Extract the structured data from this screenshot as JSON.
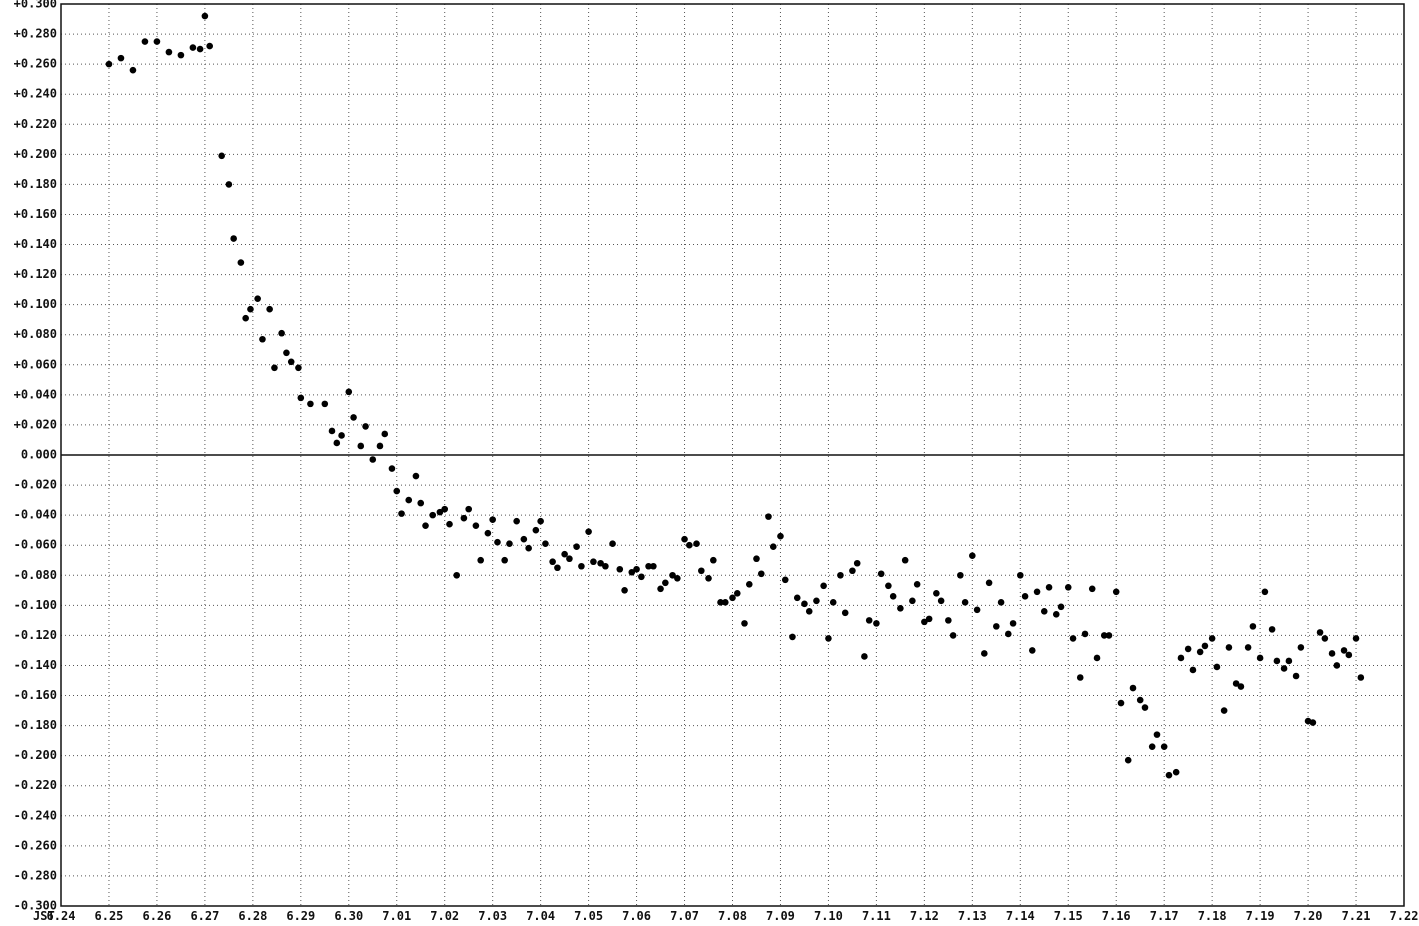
{
  "chart_data": {
    "type": "scatter",
    "x_prefix": "JST",
    "x_tick_labels": [
      "6.24",
      "6.25",
      "6.26",
      "6.27",
      "6.28",
      "6.29",
      "6.30",
      "7.01",
      "7.02",
      "7.03",
      "7.04",
      "7.05",
      "7.06",
      "7.07",
      "7.08",
      "7.09",
      "7.10",
      "7.11",
      "7.12",
      "7.13",
      "7.14",
      "7.15",
      "7.16",
      "7.17",
      "7.18",
      "7.19",
      "7.20",
      "7.21",
      "7.22"
    ],
    "y_tick_labels": [
      "+0.300",
      "+0.280",
      "+0.260",
      "+0.240",
      "+0.220",
      "+0.200",
      "+0.180",
      "+0.160",
      "+0.140",
      "+0.120",
      "+0.100",
      "+0.080",
      "+0.060",
      "+0.040",
      "+0.020",
      "0.000",
      "-0.020",
      "-0.040",
      "-0.060",
      "-0.080",
      "-0.100",
      "-0.120",
      "-0.140",
      "-0.160",
      "-0.180",
      "-0.200",
      "-0.220",
      "-0.240",
      "-0.260",
      "-0.280",
      "-0.300"
    ],
    "xlim_days": [
      0,
      28
    ],
    "ylim": [
      -0.3,
      0.3
    ],
    "grid": true,
    "points": [
      [
        1.0,
        0.26
      ],
      [
        1.25,
        0.264
      ],
      [
        1.5,
        0.256
      ],
      [
        1.75,
        0.275
      ],
      [
        2.0,
        0.275
      ],
      [
        2.25,
        0.268
      ],
      [
        2.5,
        0.266
      ],
      [
        2.75,
        0.271
      ],
      [
        2.9,
        0.27
      ],
      [
        3.0,
        0.292
      ],
      [
        3.1,
        0.272
      ],
      [
        3.35,
        0.199
      ],
      [
        3.5,
        0.18
      ],
      [
        3.6,
        0.144
      ],
      [
        3.75,
        0.128
      ],
      [
        3.85,
        0.091
      ],
      [
        3.95,
        0.097
      ],
      [
        4.1,
        0.104
      ],
      [
        4.2,
        0.077
      ],
      [
        4.35,
        0.097
      ],
      [
        4.45,
        0.058
      ],
      [
        4.6,
        0.081
      ],
      [
        4.7,
        0.068
      ],
      [
        4.8,
        0.062
      ],
      [
        4.95,
        0.058
      ],
      [
        5.0,
        0.038
      ],
      [
        5.2,
        0.034
      ],
      [
        5.5,
        0.034
      ],
      [
        5.65,
        0.016
      ],
      [
        5.75,
        0.008
      ],
      [
        5.85,
        0.013
      ],
      [
        6.0,
        0.042
      ],
      [
        6.1,
        0.025
      ],
      [
        6.25,
        0.006
      ],
      [
        6.35,
        0.019
      ],
      [
        6.5,
        -0.003
      ],
      [
        6.65,
        0.006
      ],
      [
        6.75,
        0.014
      ],
      [
        6.9,
        -0.009
      ],
      [
        7.0,
        -0.024
      ],
      [
        7.1,
        -0.039
      ],
      [
        7.25,
        -0.03
      ],
      [
        7.4,
        -0.014
      ],
      [
        7.5,
        -0.032
      ],
      [
        7.6,
        -0.047
      ],
      [
        7.75,
        -0.04
      ],
      [
        7.9,
        -0.038
      ],
      [
        8.0,
        -0.036
      ],
      [
        8.1,
        -0.046
      ],
      [
        8.25,
        -0.08
      ],
      [
        8.4,
        -0.042
      ],
      [
        8.5,
        -0.036
      ],
      [
        8.65,
        -0.047
      ],
      [
        8.75,
        -0.07
      ],
      [
        8.9,
        -0.052
      ],
      [
        9.0,
        -0.043
      ],
      [
        9.1,
        -0.058
      ],
      [
        9.25,
        -0.07
      ],
      [
        9.35,
        -0.059
      ],
      [
        9.5,
        -0.044
      ],
      [
        9.65,
        -0.056
      ],
      [
        9.75,
        -0.062
      ],
      [
        9.9,
        -0.05
      ],
      [
        10.0,
        -0.044
      ],
      [
        10.1,
        -0.059
      ],
      [
        10.25,
        -0.071
      ],
      [
        10.35,
        -0.075
      ],
      [
        10.5,
        -0.066
      ],
      [
        10.6,
        -0.069
      ],
      [
        10.75,
        -0.061
      ],
      [
        10.85,
        -0.074
      ],
      [
        11.0,
        -0.051
      ],
      [
        11.1,
        -0.071
      ],
      [
        11.25,
        -0.072
      ],
      [
        11.35,
        -0.074
      ],
      [
        11.5,
        -0.059
      ],
      [
        11.65,
        -0.076
      ],
      [
        11.75,
        -0.09
      ],
      [
        11.9,
        -0.078
      ],
      [
        12.0,
        -0.076
      ],
      [
        12.1,
        -0.081
      ],
      [
        12.25,
        -0.074
      ],
      [
        12.35,
        -0.074
      ],
      [
        12.5,
        -0.089
      ],
      [
        12.6,
        -0.085
      ],
      [
        12.75,
        -0.08
      ],
      [
        12.85,
        -0.082
      ],
      [
        13.0,
        -0.056
      ],
      [
        13.1,
        -0.06
      ],
      [
        13.25,
        -0.059
      ],
      [
        13.35,
        -0.077
      ],
      [
        13.5,
        -0.082
      ],
      [
        13.6,
        -0.07
      ],
      [
        13.75,
        -0.098
      ],
      [
        13.85,
        -0.098
      ],
      [
        14.0,
        -0.095
      ],
      [
        14.1,
        -0.092
      ],
      [
        14.25,
        -0.112
      ],
      [
        14.35,
        -0.086
      ],
      [
        14.5,
        -0.069
      ],
      [
        14.6,
        -0.079
      ],
      [
        14.75,
        -0.041
      ],
      [
        14.85,
        -0.061
      ],
      [
        15.0,
        -0.054
      ],
      [
        15.1,
        -0.083
      ],
      [
        15.25,
        -0.121
      ],
      [
        15.35,
        -0.095
      ],
      [
        15.5,
        -0.099
      ],
      [
        15.6,
        -0.104
      ],
      [
        15.75,
        -0.097
      ],
      [
        15.9,
        -0.087
      ],
      [
        16.0,
        -0.122
      ],
      [
        16.1,
        -0.098
      ],
      [
        16.25,
        -0.08
      ],
      [
        16.35,
        -0.105
      ],
      [
        16.5,
        -0.077
      ],
      [
        16.6,
        -0.072
      ],
      [
        16.75,
        -0.134
      ],
      [
        16.85,
        -0.11
      ],
      [
        17.0,
        -0.112
      ],
      [
        17.1,
        -0.079
      ],
      [
        17.25,
        -0.087
      ],
      [
        17.35,
        -0.094
      ],
      [
        17.5,
        -0.102
      ],
      [
        17.6,
        -0.07
      ],
      [
        17.75,
        -0.097
      ],
      [
        17.85,
        -0.086
      ],
      [
        18.0,
        -0.111
      ],
      [
        18.1,
        -0.109
      ],
      [
        18.25,
        -0.092
      ],
      [
        18.35,
        -0.097
      ],
      [
        18.5,
        -0.11
      ],
      [
        18.6,
        -0.12
      ],
      [
        18.75,
        -0.08
      ],
      [
        18.85,
        -0.098
      ],
      [
        19.0,
        -0.067
      ],
      [
        19.1,
        -0.103
      ],
      [
        19.25,
        -0.132
      ],
      [
        19.35,
        -0.085
      ],
      [
        19.5,
        -0.114
      ],
      [
        19.6,
        -0.098
      ],
      [
        19.75,
        -0.119
      ],
      [
        19.85,
        -0.112
      ],
      [
        20.0,
        -0.08
      ],
      [
        20.1,
        -0.094
      ],
      [
        20.25,
        -0.13
      ],
      [
        20.35,
        -0.091
      ],
      [
        20.5,
        -0.104
      ],
      [
        20.6,
        -0.088
      ],
      [
        20.75,
        -0.106
      ],
      [
        20.85,
        -0.101
      ],
      [
        21.0,
        -0.088
      ],
      [
        21.1,
        -0.122
      ],
      [
        21.25,
        -0.148
      ],
      [
        21.35,
        -0.119
      ],
      [
        21.5,
        -0.089
      ],
      [
        21.6,
        -0.135
      ],
      [
        21.75,
        -0.12
      ],
      [
        21.85,
        -0.12
      ],
      [
        22.0,
        -0.091
      ],
      [
        22.1,
        -0.165
      ],
      [
        22.25,
        -0.203
      ],
      [
        22.35,
        -0.155
      ],
      [
        22.5,
        -0.163
      ],
      [
        22.6,
        -0.168
      ],
      [
        22.75,
        -0.194
      ],
      [
        22.85,
        -0.186
      ],
      [
        23.0,
        -0.194
      ],
      [
        23.1,
        -0.213
      ],
      [
        23.25,
        -0.211
      ],
      [
        23.35,
        -0.135
      ],
      [
        23.5,
        -0.129
      ],
      [
        23.6,
        -0.143
      ],
      [
        23.75,
        -0.131
      ],
      [
        23.85,
        -0.127
      ],
      [
        24.0,
        -0.122
      ],
      [
        24.1,
        -0.141
      ],
      [
        24.25,
        -0.17
      ],
      [
        24.35,
        -0.128
      ],
      [
        24.5,
        -0.152
      ],
      [
        24.6,
        -0.154
      ],
      [
        24.75,
        -0.128
      ],
      [
        24.85,
        -0.114
      ],
      [
        25.0,
        -0.135
      ],
      [
        25.1,
        -0.091
      ],
      [
        25.25,
        -0.116
      ],
      [
        25.35,
        -0.137
      ],
      [
        25.5,
        -0.142
      ],
      [
        25.6,
        -0.137
      ],
      [
        25.75,
        -0.147
      ],
      [
        25.85,
        -0.128
      ],
      [
        26.0,
        -0.177
      ],
      [
        26.1,
        -0.178
      ],
      [
        26.25,
        -0.118
      ],
      [
        26.35,
        -0.122
      ],
      [
        26.5,
        -0.132
      ],
      [
        26.6,
        -0.14
      ],
      [
        26.75,
        -0.13
      ],
      [
        26.85,
        -0.133
      ],
      [
        27.0,
        -0.122
      ],
      [
        27.1,
        -0.148
      ]
    ]
  }
}
